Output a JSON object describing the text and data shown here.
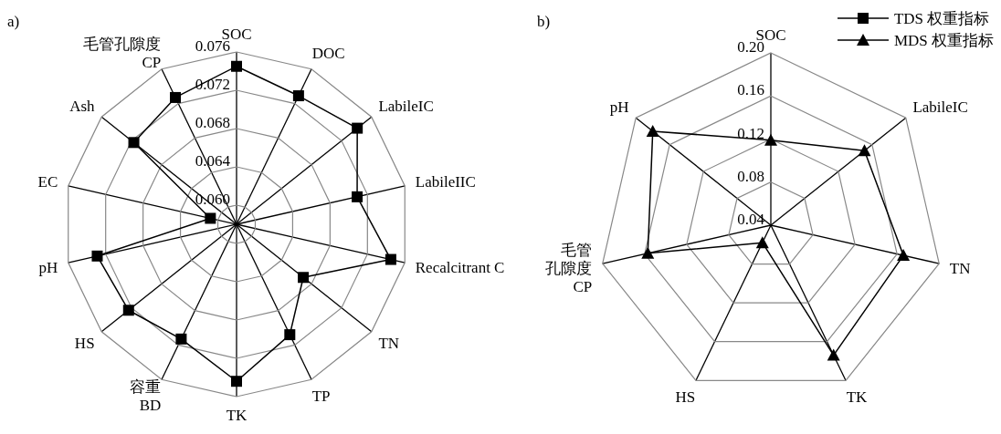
{
  "chart_data": [
    {
      "type": "radar",
      "title": "a)",
      "categories": [
        "SOC",
        "DOC",
        "LabileIC",
        "LabileIIC",
        "Recalcitrant C",
        "TN",
        "TP",
        "TK",
        "容重BD",
        "HS",
        "pH",
        "EC",
        "Ash",
        "毛管孔隙度CP"
      ],
      "series": [
        {
          "name": "TDS 权重指标",
          "color": "#000000",
          "marker": "square",
          "values": [
            0.0745,
            0.0729,
            0.0741,
            0.0709,
            0.0745,
            0.0669,
            0.0708,
            0.0744,
            0.0713,
            0.0724,
            0.0729,
            0.0608,
            0.0717,
            0.0727
          ]
        }
      ],
      "ylim": [
        0.058,
        0.076
      ],
      "yticks": [
        {
          "value": 0.06,
          "label": "0.060"
        },
        {
          "value": 0.064,
          "label": "0.064"
        },
        {
          "value": 0.068,
          "label": "0.068"
        },
        {
          "value": 0.072,
          "label": "0.072"
        },
        {
          "value": 0.076,
          "label": "0.076"
        }
      ],
      "legend": "top right"
    },
    {
      "type": "radar",
      "title": "b)",
      "categories": [
        "SOC",
        "LabileIC",
        "TN",
        "TK",
        "HS",
        "毛管孔隙度CP",
        "pH"
      ],
      "series": [
        {
          "name": "MDS 权重指标",
          "color": "#000000",
          "marker": "triangle",
          "values": [
            0.119,
            0.151,
            0.166,
            0.174,
            0.058,
            0.157,
            0.18
          ]
        }
      ],
      "ylim": [
        0.04,
        0.2
      ],
      "yticks": [
        {
          "value": 0.04,
          "label": "0.04"
        },
        {
          "value": 0.08,
          "label": "0.08"
        },
        {
          "value": 0.12,
          "label": "0.12"
        },
        {
          "value": 0.16,
          "label": "0.16"
        },
        {
          "value": 0.2,
          "label": "0.20"
        }
      ],
      "legend": "top right"
    }
  ]
}
